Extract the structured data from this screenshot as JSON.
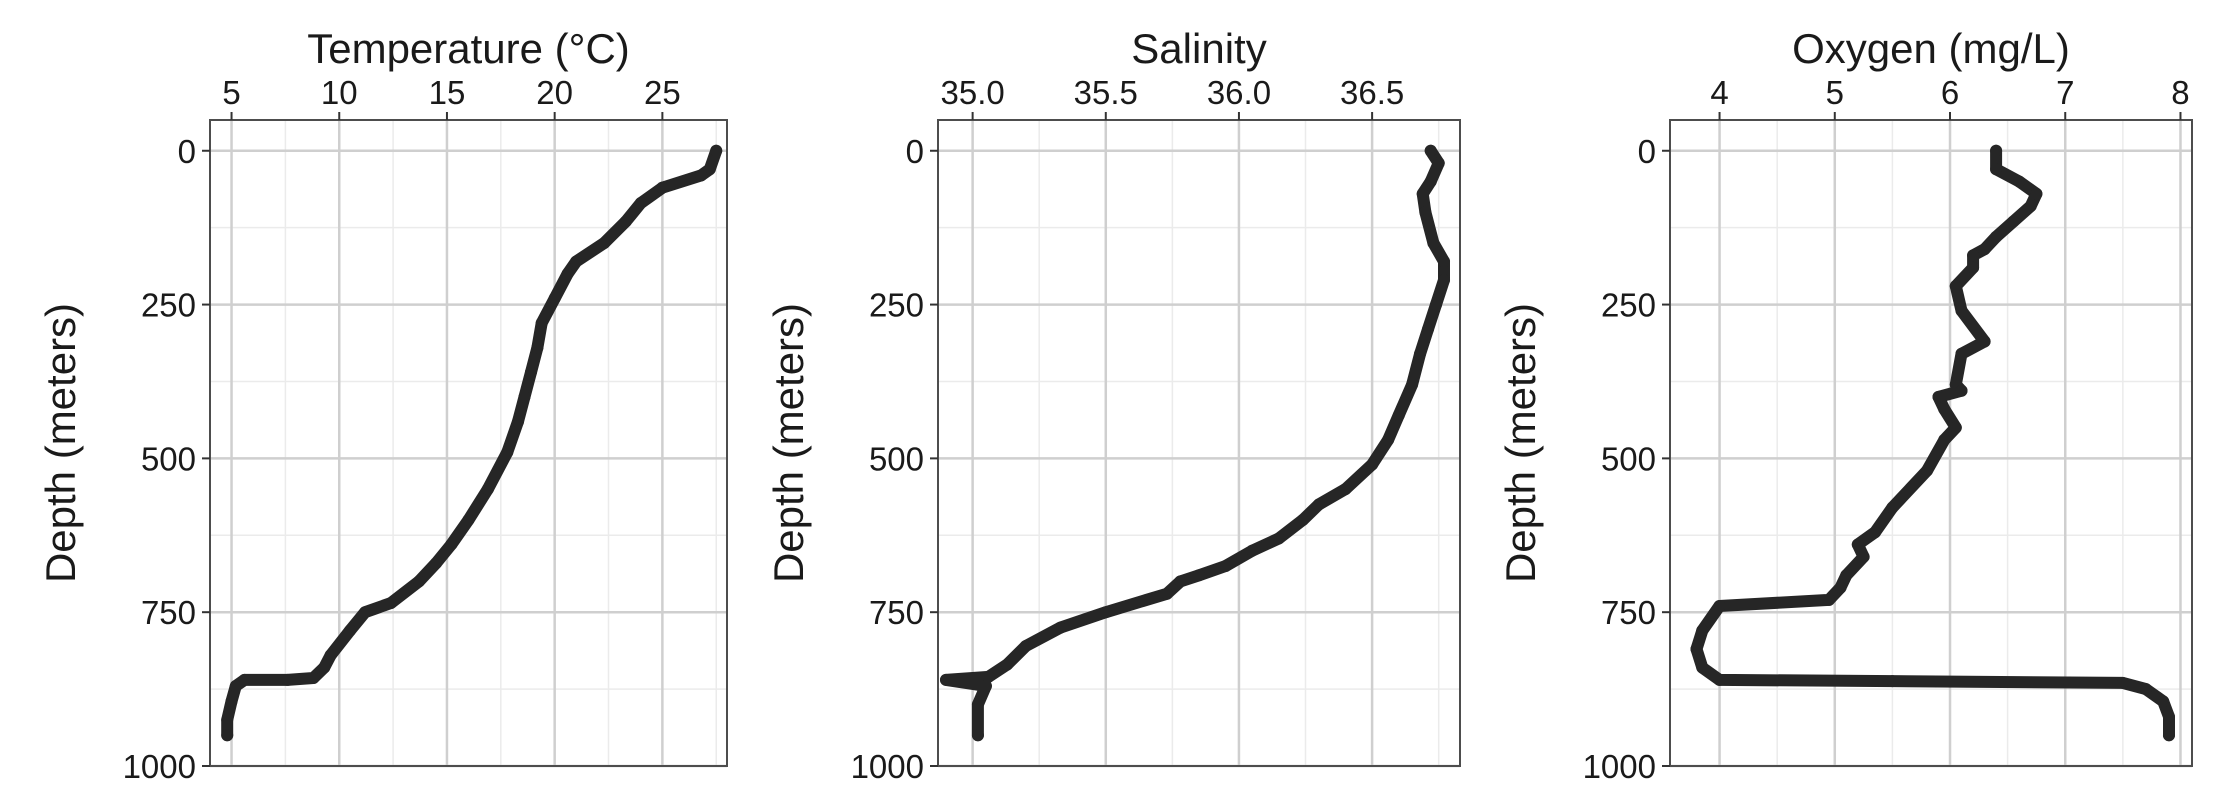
{
  "chart_data": [
    {
      "type": "line",
      "title": "Temperature (°C)",
      "xlabel": "Temperature (°C)",
      "ylabel": "Depth (meters)",
      "xlim": [
        4.0,
        28.0
      ],
      "ylim": [
        1000,
        -50
      ],
      "y_reversed": true,
      "x_axis_position": "top",
      "xticks": [
        5,
        10,
        15,
        20,
        25
      ],
      "xtick_labels": [
        "5",
        "10",
        "15",
        "20",
        "25"
      ],
      "yticks": [
        0,
        250,
        500,
        750,
        1000
      ],
      "ytick_labels": [
        "0",
        "250",
        "500",
        "750",
        "1000"
      ],
      "grid": true,
      "line_color": "#262626",
      "series": [
        {
          "x": [
            27.5,
            27.2,
            26.8,
            25.0,
            24.0,
            23.3,
            22.3,
            21.0,
            20.6,
            20.0,
            19.4,
            19.2,
            18.9,
            18.6,
            18.3,
            17.8,
            16.9,
            16.0,
            15.2,
            14.5,
            13.7,
            12.4,
            11.2,
            10.5,
            9.6,
            9.3,
            8.8,
            7.6,
            5.6,
            5.2,
            5.0,
            4.8,
            4.8
          ],
          "y": [
            0,
            30,
            40,
            60,
            85,
            115,
            150,
            180,
            200,
            240,
            280,
            320,
            360,
            400,
            440,
            490,
            550,
            600,
            640,
            670,
            700,
            735,
            750,
            780,
            820,
            840,
            857,
            860,
            860,
            870,
            895,
            925,
            950
          ]
        }
      ]
    },
    {
      "type": "line",
      "title": "Salinity",
      "xlabel": "Salinity",
      "ylabel": "Depth (meters)",
      "xlim": [
        34.87,
        36.83
      ],
      "ylim": [
        1000,
        -50
      ],
      "y_reversed": true,
      "x_axis_position": "top",
      "xticks": [
        35.0,
        35.5,
        36.0,
        36.5
      ],
      "xtick_labels": [
        "35.0",
        "35.5",
        "36.0",
        "36.5"
      ],
      "yticks": [
        0,
        250,
        500,
        750,
        1000
      ],
      "ytick_labels": [
        "0",
        "250",
        "500",
        "750",
        "1000"
      ],
      "grid": true,
      "line_color": "#262626",
      "series": [
        {
          "x": [
            36.72,
            36.75,
            36.72,
            36.69,
            36.7,
            36.73,
            36.77,
            36.77,
            36.74,
            36.71,
            36.68,
            36.65,
            36.6,
            36.56,
            36.5,
            36.4,
            36.3,
            36.24,
            36.15,
            36.05,
            35.95,
            35.85,
            35.78,
            35.73,
            35.5,
            35.33,
            35.2,
            35.13,
            35.06,
            34.9,
            35.05,
            35.02,
            35.02
          ],
          "y": [
            0,
            20,
            50,
            70,
            100,
            150,
            180,
            210,
            250,
            290,
            330,
            380,
            430,
            470,
            510,
            550,
            575,
            600,
            630,
            650,
            675,
            690,
            700,
            720,
            750,
            775,
            805,
            835,
            855,
            860,
            870,
            900,
            950
          ]
        }
      ]
    },
    {
      "type": "line",
      "title": "Oxygen (mg/L)",
      "xlabel": "Oxygen (mg/L)",
      "ylabel": "Depth (meters)",
      "xlim": [
        3.57,
        8.1
      ],
      "ylim": [
        1000,
        -50
      ],
      "y_reversed": true,
      "x_axis_position": "top",
      "xticks": [
        4,
        5,
        6,
        7,
        8
      ],
      "xtick_labels": [
        "4",
        "5",
        "6",
        "7",
        "8"
      ],
      "yticks": [
        0,
        250,
        500,
        750,
        1000
      ],
      "ytick_labels": [
        "0",
        "250",
        "500",
        "750",
        "1000"
      ],
      "grid": true,
      "line_color": "#262626",
      "series": [
        {
          "x": [
            6.4,
            6.4,
            6.6,
            6.75,
            6.7,
            6.55,
            6.4,
            6.3,
            6.2,
            6.2,
            6.05,
            6.1,
            6.3,
            6.1,
            6.05,
            6.1,
            5.9,
            5.95,
            6.05,
            5.95,
            5.8,
            5.5,
            5.35,
            5.2,
            5.25,
            5.1,
            5.05,
            4.95,
            4.0,
            3.85,
            3.8,
            3.85,
            4.0,
            5.5,
            7.5,
            7.7,
            7.85,
            7.9,
            7.9
          ],
          "y": [
            0,
            30,
            50,
            70,
            90,
            115,
            140,
            160,
            170,
            190,
            220,
            260,
            310,
            330,
            380,
            390,
            400,
            420,
            450,
            470,
            520,
            580,
            620,
            640,
            660,
            690,
            710,
            730,
            740,
            780,
            810,
            840,
            860,
            862,
            865,
            875,
            895,
            920,
            950
          ]
        }
      ]
    }
  ]
}
